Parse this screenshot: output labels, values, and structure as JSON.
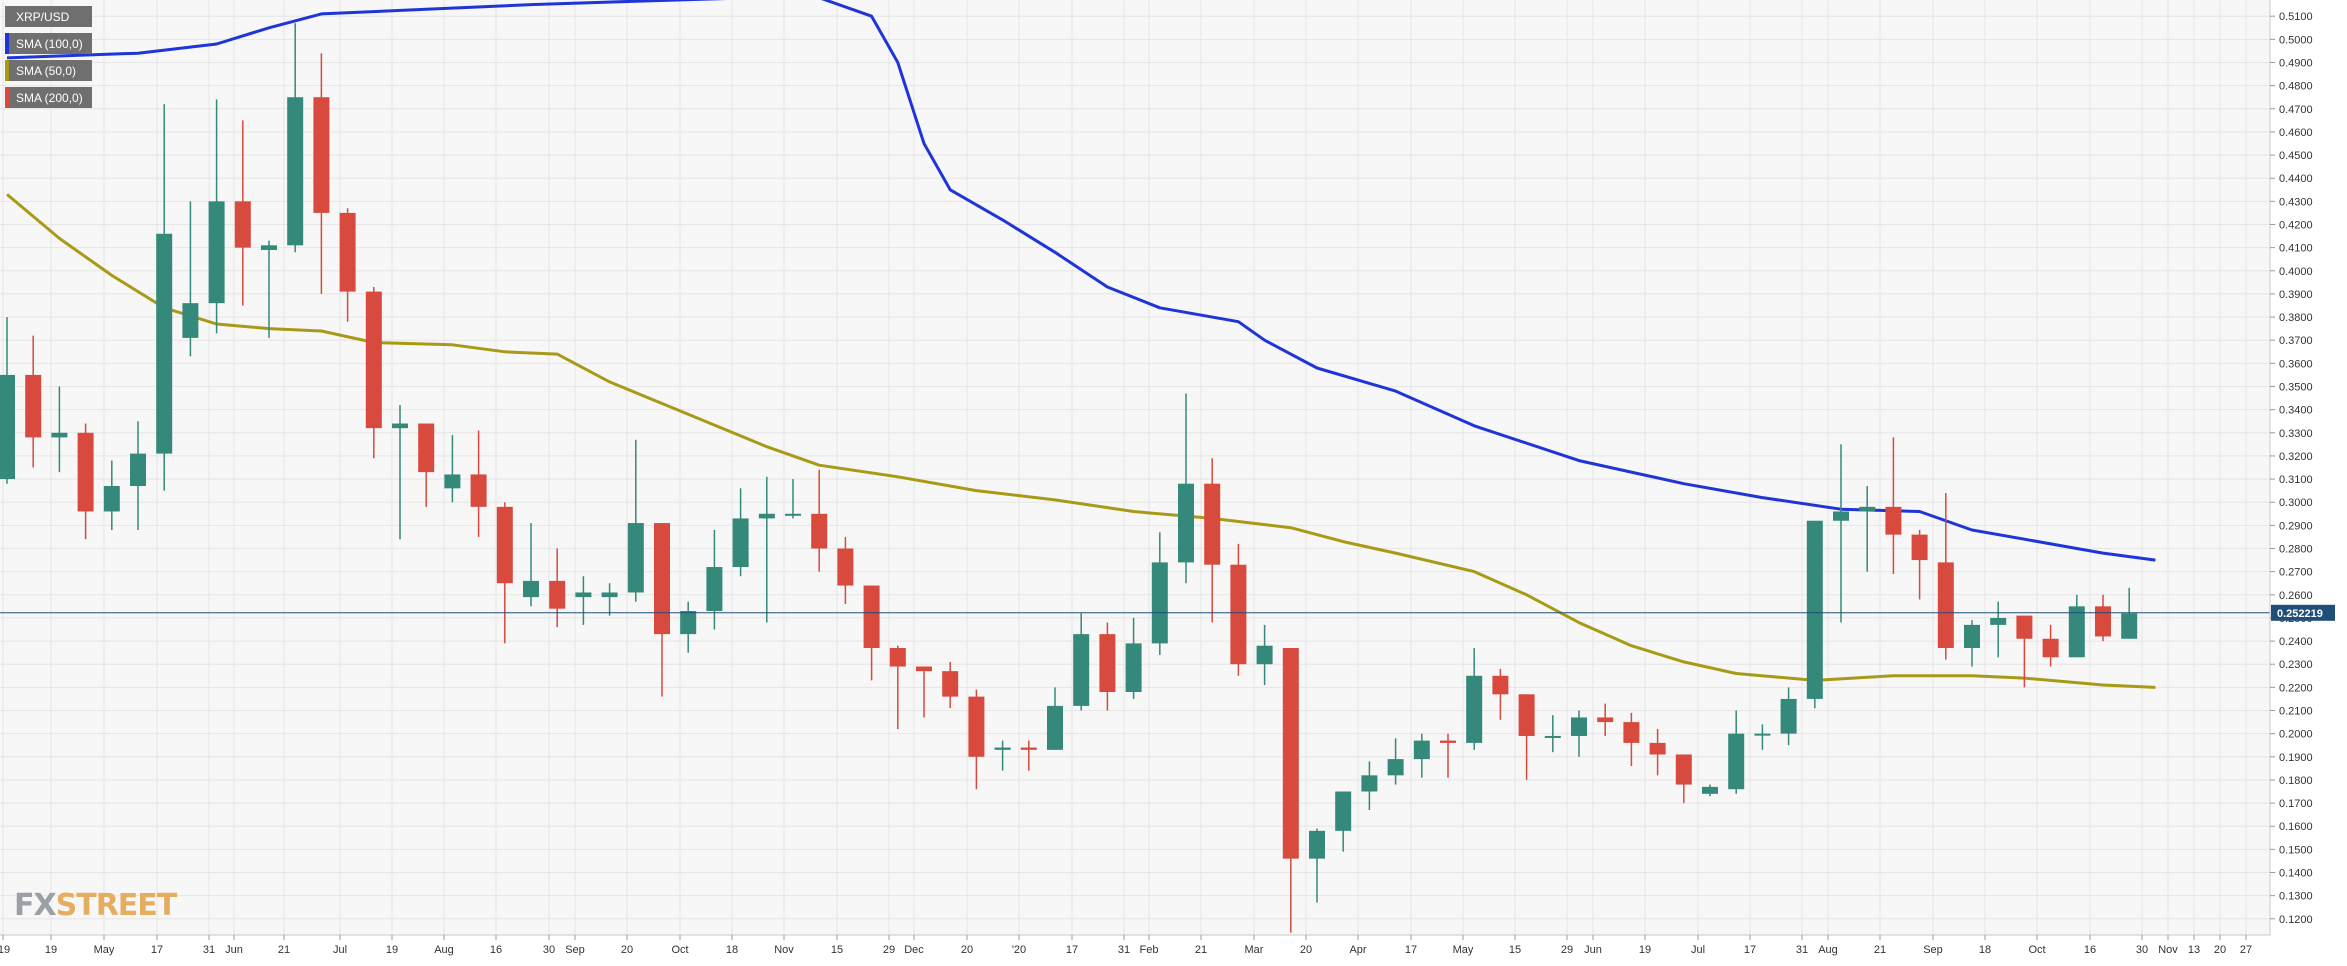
{
  "chart_data": {
    "type": "candlestick",
    "symbol": "XRP/USD",
    "legend": [
      "XRP/USD",
      "SMA (100,0)",
      "SMA (50,0)",
      "SMA (200,0)"
    ],
    "legend_placement": "top-left",
    "grid": true,
    "ylim": [
      0.113,
      0.517
    ],
    "y_ticks": [
      "0.5100",
      "0.5000",
      "0.4900",
      "0.4800",
      "0.4700",
      "0.4600",
      "0.4500",
      "0.4400",
      "0.4300",
      "0.4200",
      "0.4100",
      "0.4000",
      "0.3900",
      "0.3800",
      "0.3700",
      "0.3600",
      "0.3500",
      "0.3400",
      "0.3300",
      "0.3200",
      "0.3100",
      "0.3000",
      "0.2900",
      "0.2800",
      "0.2700",
      "0.2600",
      "0.2500",
      "0.2400",
      "0.2300",
      "0.2200",
      "0.2100",
      "0.2000",
      "0.1900",
      "0.1800",
      "0.1700",
      "0.1600",
      "0.1500",
      "0.1400",
      "0.1300",
      "0.1200"
    ],
    "x_ticks": [
      "'19",
      "19",
      "May",
      "17",
      "31",
      "Jun",
      "21",
      "Jul",
      "19",
      "Aug",
      "16",
      "30",
      "Sep",
      "20",
      "Oct",
      "18",
      "Nov",
      "15",
      "29",
      "Dec",
      "20",
      "'20",
      "17",
      "31",
      "Feb",
      "21",
      "Mar",
      "20",
      "Apr",
      "17",
      "May",
      "15",
      "29",
      "Jun",
      "19",
      "Jul",
      "17",
      "31",
      "Aug",
      "21",
      "Sep",
      "18",
      "Oct",
      "16",
      "30",
      "Nov",
      "13",
      "20",
      "27"
    ],
    "current_price": "0.252219",
    "candles": [
      {
        "o": 0.31,
        "h": 0.38,
        "l": 0.308,
        "c": 0.355
      },
      {
        "o": 0.355,
        "h": 0.372,
        "l": 0.315,
        "c": 0.328
      },
      {
        "o": 0.328,
        "h": 0.35,
        "l": 0.313,
        "c": 0.33
      },
      {
        "o": 0.33,
        "h": 0.334,
        "l": 0.284,
        "c": 0.296
      },
      {
        "o": 0.296,
        "h": 0.318,
        "l": 0.288,
        "c": 0.307
      },
      {
        "o": 0.307,
        "h": 0.335,
        "l": 0.288,
        "c": 0.321
      },
      {
        "o": 0.321,
        "h": 0.472,
        "l": 0.305,
        "c": 0.416
      },
      {
        "o": 0.371,
        "h": 0.43,
        "l": 0.363,
        "c": 0.386
      },
      {
        "o": 0.386,
        "h": 0.474,
        "l": 0.373,
        "c": 0.43
      },
      {
        "o": 0.43,
        "h": 0.465,
        "l": 0.385,
        "c": 0.41
      },
      {
        "o": 0.409,
        "h": 0.413,
        "l": 0.371,
        "c": 0.411
      },
      {
        "o": 0.411,
        "h": 0.507,
        "l": 0.408,
        "c": 0.475
      },
      {
        "o": 0.475,
        "h": 0.494,
        "l": 0.39,
        "c": 0.425
      },
      {
        "o": 0.425,
        "h": 0.427,
        "l": 0.378,
        "c": 0.391
      },
      {
        "o": 0.391,
        "h": 0.393,
        "l": 0.319,
        "c": 0.332
      },
      {
        "o": 0.332,
        "h": 0.342,
        "l": 0.284,
        "c": 0.334
      },
      {
        "o": 0.334,
        "h": 0.334,
        "l": 0.298,
        "c": 0.313
      },
      {
        "o": 0.306,
        "h": 0.329,
        "l": 0.3,
        "c": 0.312
      },
      {
        "o": 0.312,
        "h": 0.331,
        "l": 0.285,
        "c": 0.298
      },
      {
        "o": 0.298,
        "h": 0.3,
        "l": 0.239,
        "c": 0.265
      },
      {
        "o": 0.259,
        "h": 0.291,
        "l": 0.255,
        "c": 0.266
      },
      {
        "o": 0.266,
        "h": 0.28,
        "l": 0.246,
        "c": 0.254
      },
      {
        "o": 0.259,
        "h": 0.268,
        "l": 0.247,
        "c": 0.261
      },
      {
        "o": 0.259,
        "h": 0.265,
        "l": 0.251,
        "c": 0.261
      },
      {
        "o": 0.261,
        "h": 0.327,
        "l": 0.257,
        "c": 0.291
      },
      {
        "o": 0.291,
        "h": 0.291,
        "l": 0.216,
        "c": 0.243
      },
      {
        "o": 0.243,
        "h": 0.257,
        "l": 0.235,
        "c": 0.253
      },
      {
        "o": 0.253,
        "h": 0.288,
        "l": 0.245,
        "c": 0.272
      },
      {
        "o": 0.272,
        "h": 0.306,
        "l": 0.268,
        "c": 0.293
      },
      {
        "o": 0.293,
        "h": 0.311,
        "l": 0.248,
        "c": 0.295
      },
      {
        "o": 0.295,
        "h": 0.31,
        "l": 0.293,
        "c": 0.295
      },
      {
        "o": 0.295,
        "h": 0.314,
        "l": 0.27,
        "c": 0.28
      },
      {
        "o": 0.28,
        "h": 0.285,
        "l": 0.256,
        "c": 0.264
      },
      {
        "o": 0.264,
        "h": 0.264,
        "l": 0.223,
        "c": 0.237
      },
      {
        "o": 0.237,
        "h": 0.238,
        "l": 0.202,
        "c": 0.229
      },
      {
        "o": 0.229,
        "h": 0.229,
        "l": 0.207,
        "c": 0.227
      },
      {
        "o": 0.227,
        "h": 0.231,
        "l": 0.211,
        "c": 0.216
      },
      {
        "o": 0.216,
        "h": 0.219,
        "l": 0.176,
        "c": 0.19
      },
      {
        "o": 0.193,
        "h": 0.197,
        "l": 0.184,
        "c": 0.194
      },
      {
        "o": 0.194,
        "h": 0.197,
        "l": 0.184,
        "c": 0.193
      },
      {
        "o": 0.193,
        "h": 0.22,
        "l": 0.193,
        "c": 0.212
      },
      {
        "o": 0.212,
        "h": 0.252,
        "l": 0.21,
        "c": 0.243
      },
      {
        "o": 0.243,
        "h": 0.248,
        "l": 0.21,
        "c": 0.218
      },
      {
        "o": 0.218,
        "h": 0.25,
        "l": 0.215,
        "c": 0.239
      },
      {
        "o": 0.239,
        "h": 0.287,
        "l": 0.234,
        "c": 0.274
      },
      {
        "o": 0.274,
        "h": 0.347,
        "l": 0.265,
        "c": 0.308
      },
      {
        "o": 0.308,
        "h": 0.319,
        "l": 0.248,
        "c": 0.273
      },
      {
        "o": 0.273,
        "h": 0.282,
        "l": 0.225,
        "c": 0.23
      },
      {
        "o": 0.23,
        "h": 0.247,
        "l": 0.221,
        "c": 0.238
      },
      {
        "o": 0.237,
        "h": 0.237,
        "l": 0.114,
        "c": 0.146
      },
      {
        "o": 0.146,
        "h": 0.159,
        "l": 0.127,
        "c": 0.158
      },
      {
        "o": 0.158,
        "h": 0.173,
        "l": 0.149,
        "c": 0.175
      },
      {
        "o": 0.175,
        "h": 0.188,
        "l": 0.167,
        "c": 0.182
      },
      {
        "o": 0.182,
        "h": 0.198,
        "l": 0.178,
        "c": 0.189
      },
      {
        "o": 0.189,
        "h": 0.2,
        "l": 0.181,
        "c": 0.197
      },
      {
        "o": 0.197,
        "h": 0.2,
        "l": 0.181,
        "c": 0.196
      },
      {
        "o": 0.196,
        "h": 0.237,
        "l": 0.193,
        "c": 0.225
      },
      {
        "o": 0.225,
        "h": 0.228,
        "l": 0.206,
        "c": 0.217
      },
      {
        "o": 0.217,
        "h": 0.217,
        "l": 0.18,
        "c": 0.199
      },
      {
        "o": 0.199,
        "h": 0.208,
        "l": 0.192,
        "c": 0.199
      },
      {
        "o": 0.199,
        "h": 0.21,
        "l": 0.19,
        "c": 0.207
      },
      {
        "o": 0.207,
        "h": 0.213,
        "l": 0.199,
        "c": 0.205
      },
      {
        "o": 0.205,
        "h": 0.209,
        "l": 0.186,
        "c": 0.196
      },
      {
        "o": 0.196,
        "h": 0.202,
        "l": 0.182,
        "c": 0.191
      },
      {
        "o": 0.191,
        "h": 0.191,
        "l": 0.17,
        "c": 0.178
      },
      {
        "o": 0.174,
        "h": 0.178,
        "l": 0.173,
        "c": 0.177
      },
      {
        "o": 0.176,
        "h": 0.21,
        "l": 0.174,
        "c": 0.2
      },
      {
        "o": 0.2,
        "h": 0.204,
        "l": 0.193,
        "c": 0.2
      },
      {
        "o": 0.2,
        "h": 0.22,
        "l": 0.195,
        "c": 0.215
      },
      {
        "o": 0.215,
        "h": 0.291,
        "l": 0.211,
        "c": 0.292
      },
      {
        "o": 0.292,
        "h": 0.325,
        "l": 0.248,
        "c": 0.296
      },
      {
        "o": 0.296,
        "h": 0.307,
        "l": 0.27,
        "c": 0.298
      },
      {
        "o": 0.298,
        "h": 0.328,
        "l": 0.269,
        "c": 0.286
      },
      {
        "o": 0.286,
        "h": 0.288,
        "l": 0.258,
        "c": 0.275
      },
      {
        "o": 0.274,
        "h": 0.304,
        "l": 0.232,
        "c": 0.237
      },
      {
        "o": 0.237,
        "h": 0.249,
        "l": 0.229,
        "c": 0.247
      },
      {
        "o": 0.247,
        "h": 0.257,
        "l": 0.233,
        "c": 0.25
      },
      {
        "o": 0.251,
        "h": 0.251,
        "l": 0.22,
        "c": 0.241
      },
      {
        "o": 0.241,
        "h": 0.247,
        "l": 0.229,
        "c": 0.233
      },
      {
        "o": 0.233,
        "h": 0.26,
        "l": 0.233,
        "c": 0.255
      },
      {
        "o": 0.255,
        "h": 0.26,
        "l": 0.24,
        "c": 0.242
      },
      {
        "o": 0.241,
        "h": 0.263,
        "l": 0.241,
        "c": 0.252
      }
    ],
    "series": [
      {
        "key": "sma100",
        "color": "#1f35d7",
        "points": [
          [
            0,
            0.492
          ],
          [
            5,
            0.494
          ],
          [
            8,
            0.498
          ],
          [
            10,
            0.505
          ],
          [
            12,
            0.511
          ],
          [
            16,
            0.513
          ],
          [
            20,
            0.515
          ],
          [
            24,
            0.5165
          ],
          [
            28,
            0.5178
          ],
          [
            31,
            0.518
          ],
          [
            33,
            0.51
          ],
          [
            34,
            0.49
          ],
          [
            35,
            0.455
          ],
          [
            36,
            0.435
          ],
          [
            38,
            0.422
          ],
          [
            40,
            0.408
          ],
          [
            42,
            0.393
          ],
          [
            44,
            0.384
          ],
          [
            47,
            0.378
          ],
          [
            48,
            0.37
          ],
          [
            50,
            0.358
          ],
          [
            53,
            0.348
          ],
          [
            56,
            0.333
          ],
          [
            60,
            0.318
          ],
          [
            64,
            0.308
          ],
          [
            67,
            0.302
          ],
          [
            70,
            0.297
          ],
          [
            73,
            0.296
          ],
          [
            75,
            0.288
          ],
          [
            77,
            0.284
          ],
          [
            80,
            0.278
          ],
          [
            82,
            0.275
          ]
        ]
      },
      {
        "key": "sma50",
        "color": "#a89a16",
        "points": [
          [
            0,
            0.433
          ],
          [
            2,
            0.414
          ],
          [
            4,
            0.398
          ],
          [
            6,
            0.384
          ],
          [
            8,
            0.377
          ],
          [
            10,
            0.375
          ],
          [
            12,
            0.374
          ],
          [
            14,
            0.369
          ],
          [
            17,
            0.368
          ],
          [
            19,
            0.365
          ],
          [
            21,
            0.364
          ],
          [
            23,
            0.352
          ],
          [
            26,
            0.338
          ],
          [
            29,
            0.324
          ],
          [
            31,
            0.316
          ],
          [
            34,
            0.311
          ],
          [
            37,
            0.305
          ],
          [
            40,
            0.301
          ],
          [
            43,
            0.296
          ],
          [
            46,
            0.293
          ],
          [
            49,
            0.289
          ],
          [
            51,
            0.283
          ],
          [
            53,
            0.278
          ],
          [
            56,
            0.27
          ],
          [
            58,
            0.26
          ],
          [
            60,
            0.248
          ],
          [
            62,
            0.238
          ],
          [
            64,
            0.231
          ],
          [
            66,
            0.226
          ],
          [
            69,
            0.223
          ],
          [
            72,
            0.225
          ],
          [
            75,
            0.225
          ],
          [
            77,
            0.224
          ],
          [
            80,
            0.221
          ],
          [
            82,
            0.22
          ]
        ]
      }
    ],
    "colors": {
      "up": "#34897a",
      "down": "#d74a3d",
      "sma100": "#1f35d7",
      "sma50": "#a89a16",
      "sma200": "#d74a3d",
      "price_line": "#1f4e79",
      "price_badge": "#1f4e79",
      "grid": "#e6e6e6",
      "background": "#f7f7f7"
    }
  },
  "watermark": {
    "part1": "FX",
    "part2": "STREET"
  }
}
